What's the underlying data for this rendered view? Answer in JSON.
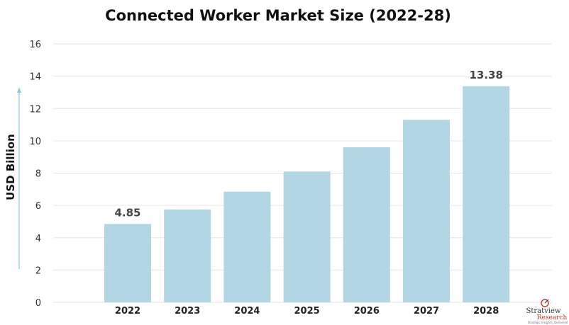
{
  "chart_data": {
    "type": "bar",
    "title": "Connected Worker Market Size (2022-28)",
    "xlabel": "",
    "ylabel": "USD Billion",
    "categories": [
      "2022",
      "2023",
      "2024",
      "2025",
      "2026",
      "2027",
      "2028"
    ],
    "values": [
      4.85,
      5.75,
      6.85,
      8.1,
      9.6,
      11.3,
      13.38
    ],
    "data_labels": [
      {
        "category": "2022",
        "text": "4.85"
      },
      {
        "category": "2028",
        "text": "13.38"
      }
    ],
    "yticks": [
      "0",
      "2",
      "4",
      "6",
      "8",
      "10",
      "12",
      "14",
      "16"
    ],
    "ylim": [
      0,
      16
    ],
    "grid": true,
    "legend": "none",
    "bar_color": "#b3d6e4"
  },
  "logo": {
    "name": "Stratview",
    "sub": "Research",
    "tagline": "Strategic Insights, Delivered"
  }
}
